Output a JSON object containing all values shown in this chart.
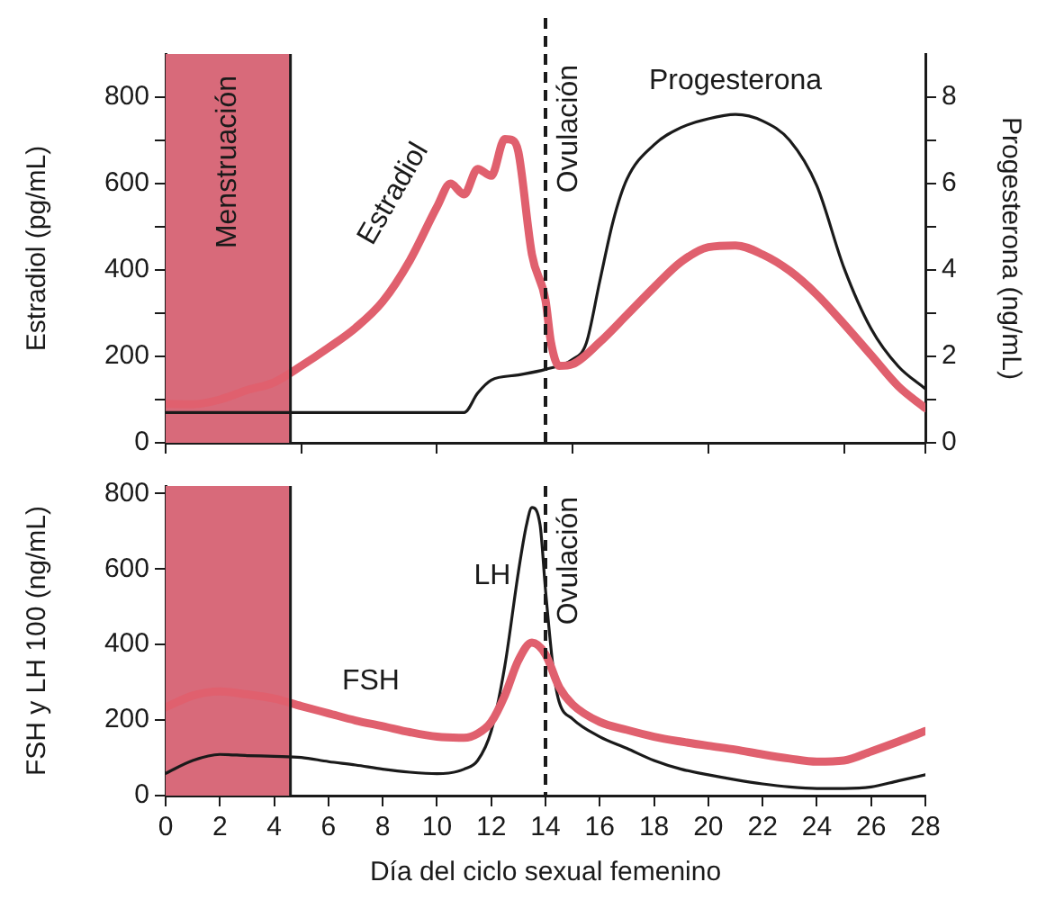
{
  "chart_data": [
    {
      "type": "line",
      "ylabel": "Estradiol (pg/mL)",
      "y2label": "Progesterona (ng/mL)",
      "xlim": [
        0,
        28
      ],
      "ylim": [
        0,
        900
      ],
      "yticks": [
        0,
        {
          "value": 100,
          "label": null
        },
        200,
        {
          "value": 300,
          "label": null
        },
        400,
        {
          "value": 500,
          "label": null
        },
        600,
        {
          "value": 700,
          "label": null
        },
        800
      ],
      "y2lim": [
        0,
        9
      ],
      "y2ticks": [
        0,
        {
          "value": 1,
          "label": null
        },
        2,
        {
          "value": 3,
          "label": null
        },
        4,
        {
          "value": 5,
          "label": null
        },
        6,
        {
          "value": 7,
          "label": null
        },
        8
      ],
      "tick_labels": "y",
      "grid": false,
      "legend": false,
      "marker": "none",
      "line_style": "solid",
      "series": [
        {
          "name": "Estradiol",
          "color": "#e0606e",
          "x": [
            0,
            1,
            2,
            3,
            4,
            5,
            6,
            7,
            8,
            9,
            10,
            10.5,
            11,
            11.5,
            12,
            12.5,
            12.8,
            13,
            13.5,
            14,
            14.2,
            14.5,
            15,
            16,
            17,
            18,
            19,
            20,
            21,
            22,
            23,
            24,
            25,
            26,
            27,
            28
          ],
          "values": [
            90,
            89,
            100,
            122,
            140,
            178,
            220,
            266,
            327,
            422,
            546,
            600,
            575,
            634,
            618,
            703,
            700,
            673,
            436,
            330,
            233,
            178,
            182,
            233,
            296,
            360,
            419,
            453,
            457,
            436,
            398,
            343,
            275,
            203,
            131,
            80
          ]
        },
        {
          "name": "Progesterona",
          "color": "#1a1a1a",
          "axis": "y2",
          "x": [
            0,
            5,
            10,
            10.5,
            11,
            11.5,
            12,
            13,
            14,
            15,
            15.5,
            16,
            16.5,
            17,
            18,
            19,
            20,
            21,
            22,
            23,
            24,
            25,
            26,
            27,
            28
          ],
          "values": [
            0.7,
            0.7,
            0.7,
            0.7,
            0.7,
            1.15,
            1.45,
            1.57,
            1.7,
            1.93,
            2.3,
            3.74,
            5.15,
            6.1,
            6.9,
            7.3,
            7.5,
            7.6,
            7.45,
            7.0,
            5.95,
            4.05,
            2.64,
            1.77,
            1.25
          ]
        }
      ],
      "ref_lines": [
        {
          "axis": "x",
          "value": 14,
          "label": "Ovulación",
          "line_style": "dashed",
          "color": "#1a1a1a"
        },
        {
          "axis": "x",
          "value": 4.6,
          "line_style": "solid",
          "color": "#1a1a1a"
        }
      ],
      "bands": [
        {
          "axis": "x",
          "from": 0,
          "to": 4.6,
          "label": "Menstruación",
          "color": "#d86a7a"
        }
      ]
    },
    {
      "type": "line",
      "xlabel": "Día del ciclo sexual femenino",
      "ylabel": "FSH y LH 100 (ng/mL)",
      "xlim": [
        0,
        28
      ],
      "xticks": [
        0,
        2,
        4,
        6,
        8,
        10,
        12,
        14,
        16,
        18,
        20,
        22,
        24,
        26,
        28
      ],
      "ylim": [
        0,
        820
      ],
      "yticks": [
        0,
        200,
        400,
        600,
        800
      ],
      "grid": false,
      "legend": false,
      "marker": "none",
      "line_style": "solid",
      "series": [
        {
          "name": "FSH",
          "color": "#e0606e",
          "x": [
            0,
            1,
            2,
            3,
            4,
            5,
            6,
            7,
            8,
            9,
            10,
            11,
            11.5,
            12,
            12.5,
            13,
            13.5,
            14,
            14.5,
            15,
            16,
            17,
            18,
            19,
            20,
            21,
            22,
            23,
            24,
            25,
            26,
            27,
            28
          ],
          "values": [
            234,
            265,
            276,
            268,
            257,
            237,
            218,
            199,
            184,
            168,
            156,
            153,
            164,
            195,
            265,
            358,
            405,
            374,
            288,
            241,
            195,
            174,
            156,
            143,
            132,
            122,
            109,
            98,
            90,
            93,
            117,
            143,
            171
          ]
        },
        {
          "name": "LH",
          "color": "#1a1a1a",
          "x": [
            0,
            1,
            2,
            3,
            4,
            5,
            6,
            7,
            8,
            9,
            10,
            11,
            11.5,
            12,
            12.5,
            13,
            13.3,
            13.5,
            13.8,
            14,
            14.3,
            14.5,
            15,
            16,
            17,
            18,
            19,
            20,
            21,
            22,
            23,
            24,
            25,
            26,
            27,
            28
          ],
          "values": [
            59,
            93,
            109,
            106,
            104,
            101,
            90,
            81,
            70,
            62,
            58,
            70,
            93,
            171,
            343,
            592,
            717,
            763,
            717,
            545,
            327,
            249,
            203,
            156,
            125,
            93,
            70,
            55,
            42,
            31,
            23,
            19,
            19,
            23,
            39,
            55
          ]
        }
      ],
      "ref_lines": [
        {
          "axis": "x",
          "value": 14,
          "label": "Ovulación",
          "line_style": "dashed",
          "color": "#1a1a1a"
        },
        {
          "axis": "x",
          "value": 4.6,
          "line_style": "solid",
          "color": "#1a1a1a"
        }
      ],
      "bands": [
        {
          "axis": "x",
          "from": 0,
          "to": 4.6,
          "color": "#d86a7a"
        }
      ]
    }
  ]
}
